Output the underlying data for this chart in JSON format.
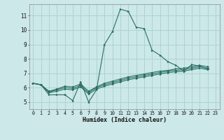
{
  "xlabel": "Humidex (Indice chaleur)",
  "bg_color": "#cce8e8",
  "line_color": "#2a6e65",
  "grid_color": "#aacfcf",
  "xlim": [
    -0.5,
    23.5
  ],
  "ylim": [
    4.5,
    11.8
  ],
  "yticks": [
    5,
    6,
    7,
    8,
    9,
    10,
    11
  ],
  "xtick_labels": [
    "0",
    "1",
    "2",
    "3",
    "4",
    "5",
    "6",
    "7",
    "8",
    "9",
    "10",
    "11",
    "12",
    "13",
    "14",
    "15",
    "16",
    "17",
    "18",
    "19",
    "20",
    "21",
    "22",
    "23"
  ],
  "series": [
    [
      6.3,
      6.2,
      5.5,
      5.5,
      5.5,
      5.1,
      6.4,
      5.0,
      5.85,
      9.0,
      9.9,
      11.45,
      11.3,
      10.2,
      10.1,
      8.6,
      8.25,
      7.8,
      7.55,
      7.15,
      7.6,
      7.5,
      7.3
    ],
    [
      6.3,
      6.2,
      5.65,
      5.75,
      5.9,
      5.85,
      6.05,
      5.55,
      5.9,
      6.1,
      6.25,
      6.4,
      6.55,
      6.65,
      6.75,
      6.85,
      6.95,
      7.05,
      7.1,
      7.15,
      7.25,
      7.35,
      7.25
    ],
    [
      6.3,
      6.2,
      5.7,
      5.85,
      6.0,
      5.95,
      6.15,
      5.65,
      6.0,
      6.2,
      6.35,
      6.5,
      6.65,
      6.75,
      6.85,
      6.95,
      7.05,
      7.15,
      7.2,
      7.25,
      7.35,
      7.45,
      7.35
    ],
    [
      6.3,
      6.2,
      5.75,
      5.9,
      6.1,
      6.05,
      6.25,
      5.75,
      6.05,
      6.3,
      6.45,
      6.6,
      6.75,
      6.85,
      6.95,
      7.05,
      7.15,
      7.2,
      7.3,
      7.35,
      7.45,
      7.55,
      7.45
    ]
  ]
}
